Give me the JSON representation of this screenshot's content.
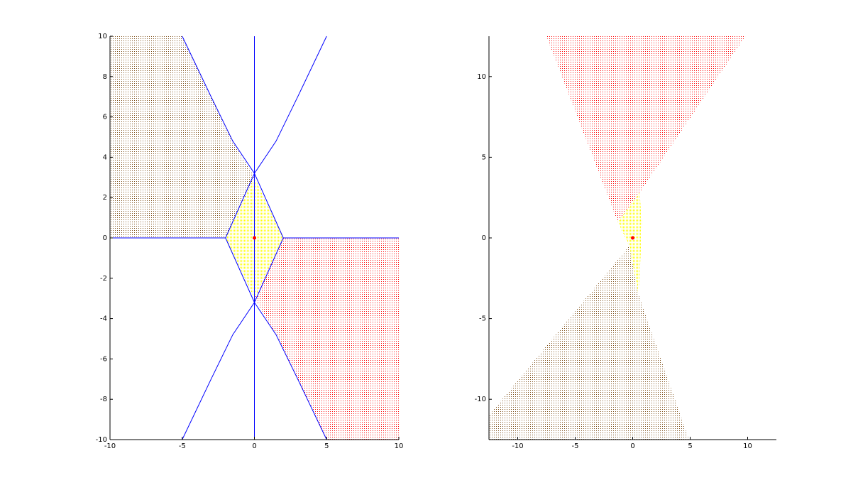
{
  "chart_data": [
    {
      "type": "region",
      "xlim": [
        -10,
        10
      ],
      "ylim": [
        -10,
        10
      ],
      "xticks": [
        -10,
        -5,
        0,
        5,
        10
      ],
      "yticks": [
        -10,
        -8,
        -6,
        -4,
        -2,
        0,
        2,
        4,
        6,
        8,
        10
      ],
      "regions": [
        {
          "color": "#7a4a12",
          "x": [
            -10,
            -5,
            -3,
            -1.5,
            0,
            -2,
            -10
          ],
          "y": [
            10,
            10,
            7,
            4.8,
            3,
            0,
            0
          ]
        },
        {
          "color": "#ffff00",
          "x": [
            0,
            2,
            0,
            -2
          ],
          "y": [
            3,
            0,
            -3,
            0
          ]
        },
        {
          "color": "#ff0000",
          "x": [
            2,
            10,
            10,
            5,
            3,
            1.5,
            0
          ],
          "y": [
            0,
            0,
            -10,
            -10,
            -7,
            -4.8,
            -3
          ]
        }
      ],
      "lines": [
        {
          "color": "#0000ff",
          "x": [
            0,
            0
          ],
          "y": [
            -10,
            10
          ]
        },
        {
          "color": "#0000ff",
          "x": [
            -10,
            -2
          ],
          "y": [
            0,
            0
          ]
        },
        {
          "color": "#0000ff",
          "x": [
            2,
            10
          ],
          "y": [
            0,
            0
          ]
        },
        {
          "color": "#0000ff",
          "x": [
            -5,
            -3,
            -1.5,
            0,
            2
          ],
          "y": [
            10,
            7,
            4.8,
            3.2,
            0
          ]
        },
        {
          "color": "#0000ff",
          "x": [
            5,
            3,
            1.5,
            0,
            -2
          ],
          "y": [
            10,
            7,
            4.8,
            3.2,
            0
          ]
        },
        {
          "color": "#0000ff",
          "x": [
            -5,
            -3,
            -1.5,
            0,
            2
          ],
          "y": [
            -10,
            -7,
            -4.8,
            -3.2,
            0
          ]
        },
        {
          "color": "#0000ff",
          "x": [
            5,
            3,
            1.5,
            0,
            -2
          ],
          "y": [
            -10,
            -7,
            -4.8,
            -3.2,
            0
          ]
        }
      ],
      "points": {
        "color": "#ff0000",
        "x": [
          0
        ],
        "y": [
          0
        ]
      }
    },
    {
      "type": "region",
      "xlim": [
        -12.5,
        12.5
      ],
      "ylim": [
        -12.5,
        12.5
      ],
      "xticks": [
        -10,
        -5,
        0,
        5,
        10
      ],
      "yticks": [
        -10,
        -5,
        0,
        5,
        10
      ],
      "regions": [
        {
          "color": "#ff0000",
          "x": [
            -7.5,
            9.8,
            0.6,
            -1.3
          ],
          "y": [
            12.5,
            12.5,
            2.8,
            1
          ]
        },
        {
          "color": "#ffff00",
          "x": [
            -1.3,
            0.6,
            0.8,
            0.7,
            0.5,
            -0.3
          ],
          "y": [
            1,
            2.8,
            1,
            -1,
            -3.5,
            -0.5
          ]
        },
        {
          "color": "#7a4a12",
          "x": [
            0.5,
            4.9,
            -12.5,
            -12.5,
            -0.3
          ],
          "y": [
            -3.5,
            -12.5,
            -12.5,
            -11,
            -0.5
          ]
        }
      ],
      "lines": [],
      "points": {
        "color": "#ff0000",
        "x": [
          0
        ],
        "y": [
          0
        ]
      }
    }
  ]
}
